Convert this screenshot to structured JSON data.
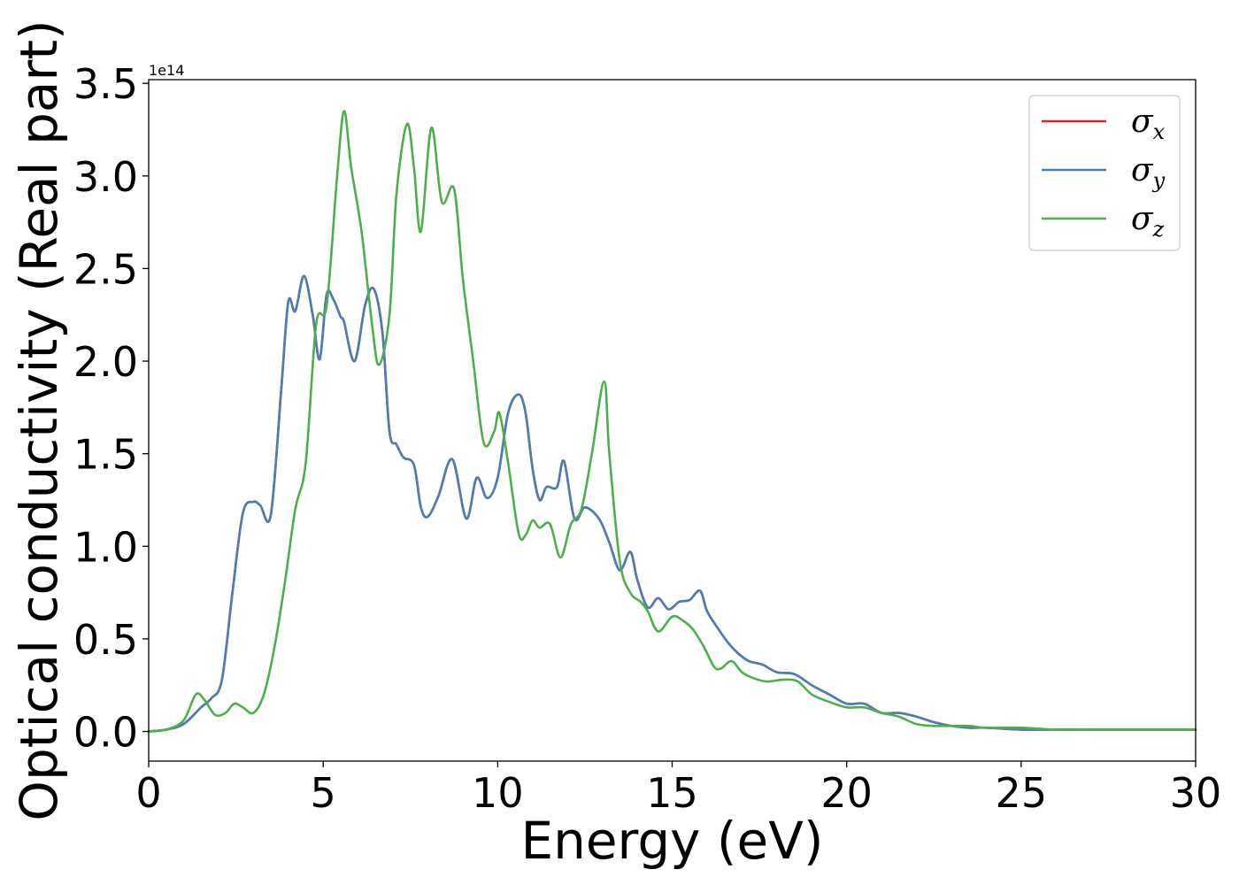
{
  "chart_data": {
    "type": "line",
    "title": "",
    "xlabel": "Energy (eV)",
    "ylabel": "Optical conductivity (Real part)",
    "y_offset_label": "1e14",
    "xlim": [
      0,
      30
    ],
    "ylim": [
      -0.16,
      3.52
    ],
    "xticks": [
      0,
      5,
      10,
      15,
      20,
      25,
      30
    ],
    "xtick_labels": [
      "0",
      "5",
      "10",
      "15",
      "20",
      "25",
      "30"
    ],
    "yticks": [
      0.0,
      0.5,
      1.0,
      1.5,
      2.0,
      2.5,
      3.0,
      3.5
    ],
    "ytick_labels": [
      "0.0",
      "0.5",
      "1.0",
      "1.5",
      "2.0",
      "2.5",
      "3.0",
      "3.5"
    ],
    "grid": false,
    "legend_position": "top-right",
    "series": [
      {
        "name": "σ",
        "subscript": "x",
        "color": "#d62728",
        "x": [
          0,
          0.5,
          1.0,
          1.5,
          1.8,
          2.1,
          2.4,
          2.7,
          3.0,
          3.2,
          3.5,
          3.8,
          4.0,
          4.2,
          4.45,
          4.7,
          4.9,
          5.1,
          5.3,
          5.5,
          5.6,
          5.9,
          6.2,
          6.45,
          6.7,
          6.9,
          7.1,
          7.3,
          7.6,
          7.8,
          8.0,
          8.3,
          8.7,
          9.1,
          9.4,
          9.7,
          10.0,
          10.3,
          10.6,
          10.8,
          11.0,
          11.2,
          11.4,
          11.7,
          11.9,
          12.2,
          12.5,
          12.9,
          13.2,
          13.5,
          13.8,
          14.0,
          14.3,
          14.6,
          14.9,
          15.2,
          15.5,
          15.8,
          16.0,
          16.3,
          16.6,
          16.9,
          17.2,
          17.6,
          18.0,
          18.5,
          19.0,
          19.5,
          20.0,
          20.5,
          21.0,
          21.5,
          22.0,
          22.5,
          23.0,
          23.5,
          24.0,
          25.0,
          26.0,
          27.0,
          28.0,
          29.0,
          30.0
        ],
        "y": [
          0.0,
          0.01,
          0.04,
          0.13,
          0.18,
          0.28,
          0.75,
          1.18,
          1.24,
          1.22,
          1.17,
          1.85,
          2.32,
          2.27,
          2.46,
          2.25,
          2.01,
          2.36,
          2.33,
          2.24,
          2.21,
          2.0,
          2.3,
          2.39,
          2.15,
          1.62,
          1.55,
          1.48,
          1.44,
          1.21,
          1.16,
          1.27,
          1.47,
          1.15,
          1.37,
          1.26,
          1.37,
          1.72,
          1.82,
          1.72,
          1.42,
          1.25,
          1.32,
          1.32,
          1.46,
          1.15,
          1.21,
          1.15,
          1.02,
          0.87,
          0.97,
          0.82,
          0.67,
          0.72,
          0.66,
          0.7,
          0.71,
          0.76,
          0.65,
          0.56,
          0.48,
          0.42,
          0.38,
          0.36,
          0.32,
          0.31,
          0.25,
          0.2,
          0.15,
          0.15,
          0.1,
          0.1,
          0.08,
          0.05,
          0.03,
          0.02,
          0.02,
          0.01,
          0.01,
          0.01,
          0.01,
          0.01,
          0.01
        ]
      },
      {
        "name": "σ",
        "subscript": "y",
        "color": "#4a7fb5",
        "x": [
          0,
          0.5,
          1.0,
          1.5,
          1.8,
          2.1,
          2.4,
          2.7,
          3.0,
          3.2,
          3.5,
          3.8,
          4.0,
          4.2,
          4.45,
          4.7,
          4.9,
          5.1,
          5.3,
          5.5,
          5.6,
          5.9,
          6.2,
          6.45,
          6.7,
          6.9,
          7.1,
          7.3,
          7.6,
          7.8,
          8.0,
          8.3,
          8.7,
          9.1,
          9.4,
          9.7,
          10.0,
          10.3,
          10.6,
          10.8,
          11.0,
          11.2,
          11.4,
          11.7,
          11.9,
          12.2,
          12.5,
          12.9,
          13.2,
          13.5,
          13.8,
          14.0,
          14.3,
          14.6,
          14.9,
          15.2,
          15.5,
          15.8,
          16.0,
          16.3,
          16.6,
          16.9,
          17.2,
          17.6,
          18.0,
          18.5,
          19.0,
          19.5,
          20.0,
          20.5,
          21.0,
          21.5,
          22.0,
          22.5,
          23.0,
          23.5,
          24.0,
          25.0,
          26.0,
          27.0,
          28.0,
          29.0,
          30.0
        ],
        "y": [
          0.0,
          0.01,
          0.04,
          0.13,
          0.18,
          0.28,
          0.75,
          1.18,
          1.24,
          1.22,
          1.17,
          1.85,
          2.32,
          2.27,
          2.46,
          2.25,
          2.01,
          2.36,
          2.33,
          2.24,
          2.21,
          2.0,
          2.3,
          2.39,
          2.15,
          1.62,
          1.55,
          1.48,
          1.44,
          1.21,
          1.16,
          1.27,
          1.47,
          1.15,
          1.37,
          1.26,
          1.37,
          1.72,
          1.82,
          1.72,
          1.42,
          1.25,
          1.32,
          1.32,
          1.46,
          1.15,
          1.21,
          1.15,
          1.02,
          0.87,
          0.97,
          0.82,
          0.67,
          0.72,
          0.66,
          0.7,
          0.71,
          0.76,
          0.65,
          0.56,
          0.48,
          0.42,
          0.38,
          0.36,
          0.32,
          0.31,
          0.25,
          0.2,
          0.15,
          0.15,
          0.1,
          0.1,
          0.08,
          0.05,
          0.03,
          0.02,
          0.02,
          0.01,
          0.01,
          0.01,
          0.01,
          0.01,
          0.01
        ]
      },
      {
        "name": "σ",
        "subscript": "z",
        "color": "#4daf4a",
        "x": [
          0,
          0.5,
          1.0,
          1.35,
          1.6,
          1.9,
          2.2,
          2.45,
          2.7,
          3.0,
          3.3,
          3.6,
          3.9,
          4.2,
          4.5,
          4.8,
          5.1,
          5.4,
          5.6,
          5.8,
          6.1,
          6.4,
          6.6,
          6.9,
          7.1,
          7.4,
          7.6,
          7.8,
          8.1,
          8.4,
          8.75,
          9.0,
          9.3,
          9.6,
          9.9,
          10.05,
          10.3,
          10.6,
          10.8,
          11.0,
          11.2,
          11.5,
          11.8,
          12.1,
          12.4,
          12.7,
          13.05,
          13.2,
          13.5,
          13.8,
          14.1,
          14.3,
          14.6,
          15.0,
          15.3,
          15.6,
          15.9,
          16.2,
          16.4,
          16.7,
          17.0,
          17.3,
          17.7,
          18.2,
          18.6,
          19.0,
          19.5,
          20.0,
          20.5,
          21.0,
          21.5,
          22.0,
          22.5,
          23.0,
          23.5,
          24.0,
          25.0,
          26.0,
          27.0,
          28.0,
          29.0,
          30.0
        ],
        "y": [
          0.0,
          0.01,
          0.06,
          0.2,
          0.17,
          0.09,
          0.1,
          0.15,
          0.13,
          0.1,
          0.2,
          0.45,
          0.8,
          1.2,
          1.45,
          2.2,
          2.3,
          3.0,
          3.35,
          3.05,
          2.7,
          2.2,
          1.98,
          2.25,
          2.9,
          3.28,
          3.05,
          2.7,
          3.26,
          2.86,
          2.93,
          2.45,
          2.0,
          1.56,
          1.62,
          1.72,
          1.45,
          1.07,
          1.06,
          1.14,
          1.1,
          1.12,
          0.94,
          1.12,
          1.2,
          1.5,
          1.89,
          1.5,
          0.92,
          0.75,
          0.7,
          0.65,
          0.54,
          0.62,
          0.6,
          0.55,
          0.46,
          0.35,
          0.34,
          0.38,
          0.32,
          0.29,
          0.27,
          0.28,
          0.27,
          0.2,
          0.16,
          0.13,
          0.13,
          0.1,
          0.08,
          0.04,
          0.03,
          0.03,
          0.03,
          0.02,
          0.02,
          0.01,
          0.01,
          0.01,
          0.01,
          0.01
        ]
      }
    ]
  }
}
